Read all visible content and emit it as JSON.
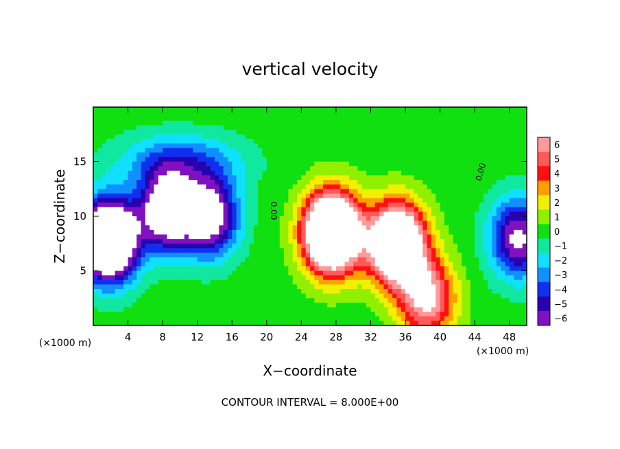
{
  "chart_data": {
    "type": "heatmap",
    "title": "vertical velocity",
    "xlabel": "X−coordinate",
    "ylabel": "Z−coordinate",
    "x_unit_label": "(×1000 m)",
    "y_unit_label": "(×1000 m)",
    "xlim": [
      0,
      50
    ],
    "ylim": [
      0,
      20
    ],
    "x_ticks": [
      "4",
      "8",
      "12",
      "16",
      "20",
      "24",
      "28",
      "32",
      "36",
      "40",
      "44",
      "48"
    ],
    "x_tick_values": [
      4,
      8,
      12,
      16,
      20,
      24,
      28,
      32,
      36,
      40,
      44,
      48
    ],
    "y_ticks": [
      "5",
      "10",
      "15"
    ],
    "y_tick_values": [
      5,
      10,
      15
    ],
    "colorbar": {
      "labels": [
        "6",
        "5",
        "4",
        "3",
        "2",
        "1",
        "0",
        "−1",
        "−2",
        "−3",
        "−4",
        "−5",
        "−6"
      ],
      "values": [
        6,
        5,
        4,
        3,
        2,
        1,
        0,
        -1,
        -2,
        -3,
        -4,
        -5,
        -6
      ],
      "colors": [
        "#ff9a9a",
        "#ff5a5a",
        "#ff1010",
        "#ffa000",
        "#f0f000",
        "#90f000",
        "#10e010",
        "#10e8a0",
        "#10e0ff",
        "#1090ff",
        "#1030f0",
        "#2800b0",
        "#8010c0"
      ]
    },
    "contour_labels": [
      "0.00",
      "0.00"
    ],
    "contour_interval_text": "CONTOUR INTERVAL = 8.000E+00",
    "features": [
      {
        "sign": "negative",
        "x": 1.8,
        "z": 7.8,
        "peak": -14
      },
      {
        "sign": "negative",
        "x": 8.5,
        "z": 10.5,
        "peak": -9
      },
      {
        "sign": "negative",
        "x": 13.5,
        "z": 10.0,
        "peak": -8
      },
      {
        "sign": "positive",
        "x": 27.5,
        "z": 8.5,
        "peak": 15
      },
      {
        "sign": "positive",
        "x": 35.0,
        "z": 7.5,
        "peak": 13
      },
      {
        "sign": "positive",
        "x": 38.5,
        "z": 2.5,
        "peak": 7
      },
      {
        "sign": "negative",
        "x": 49.0,
        "z": 8.0,
        "peak": -7
      }
    ]
  }
}
